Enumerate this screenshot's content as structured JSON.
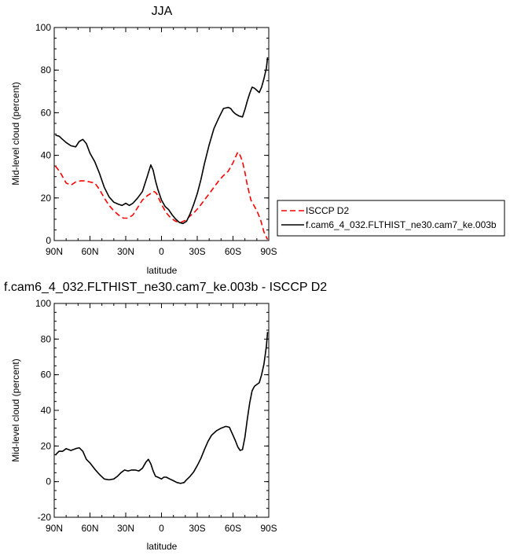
{
  "chart_data": [
    {
      "type": "line",
      "title": "JJA",
      "xlabel": "latitude",
      "ylabel": "Mid-level cloud (percent)",
      "xlim": [
        90,
        -90
      ],
      "ylim": [
        0,
        100
      ],
      "xticks": [
        90,
        60,
        30,
        0,
        -30,
        -60,
        -90
      ],
      "xtick_labels": [
        "90N",
        "60N",
        "30N",
        "0",
        "30S",
        "60S",
        "90S"
      ],
      "yticks": [
        0,
        20,
        40,
        60,
        80,
        100
      ],
      "ytick_labels": [
        "0",
        "20",
        "40",
        "60",
        "80",
        "100"
      ],
      "legend_position": "right",
      "series": [
        {
          "name": "ISCCP D2",
          "color": "#ff0000",
          "dash": "dashed",
          "x": [
            89,
            85,
            80,
            76,
            72,
            68,
            64,
            60,
            56,
            52,
            48,
            44,
            40,
            36,
            32,
            28,
            24,
            20,
            16,
            12,
            8,
            6,
            4,
            0,
            -4,
            -8,
            -12,
            -16,
            -20,
            -24,
            -28,
            -32,
            -36,
            -40,
            -44,
            -48,
            -52,
            -56,
            -60,
            -62,
            -64,
            -66,
            -68,
            -70,
            -72,
            -75,
            -78,
            -80,
            -83,
            -86,
            -89
          ],
          "y": [
            35,
            32,
            27,
            26,
            27.5,
            28,
            28,
            27.5,
            27,
            24,
            20,
            16.5,
            14,
            12,
            10.5,
            10.5,
            12,
            15.5,
            19,
            21,
            22.5,
            23,
            22,
            17,
            13,
            10.5,
            9,
            8.5,
            9.5,
            11.5,
            13.5,
            16,
            19,
            22,
            25,
            28,
            30.5,
            32.5,
            36.5,
            39,
            41.5,
            40,
            37,
            32,
            26,
            19,
            16,
            14,
            10,
            4,
            0.5
          ]
        },
        {
          "name": "f.cam6_4_032.FLTHIST_ne30.cam7_ke.003b",
          "color": "#000000",
          "dash": "solid",
          "x": [
            89,
            86,
            83,
            80,
            76,
            72,
            69,
            66,
            63,
            60,
            56,
            52,
            48,
            44,
            40,
            36,
            33,
            30,
            27,
            24,
            20,
            16,
            12,
            9,
            7,
            5,
            3,
            0,
            -3,
            -6,
            -9,
            -12,
            -15,
            -18,
            -21,
            -24,
            -27,
            -30,
            -33,
            -36,
            -40,
            -44,
            -48,
            -52,
            -56,
            -58,
            -60,
            -62,
            -65,
            -68,
            -70,
            -72,
            -74,
            -76,
            -78,
            -80,
            -82,
            -84,
            -86,
            -88,
            -89
          ],
          "y": [
            49.5,
            49,
            47.5,
            46,
            44.5,
            44,
            46.5,
            47.5,
            45.5,
            41,
            37,
            31.5,
            25,
            20.5,
            18,
            17,
            16.5,
            17.5,
            16.5,
            17.5,
            20,
            23,
            30,
            35.5,
            33,
            28,
            24,
            19,
            16,
            14.5,
            12,
            10,
            8.5,
            8,
            9,
            12.5,
            17,
            22,
            28.5,
            36,
            45,
            52.5,
            57.5,
            62,
            62.5,
            62,
            60.5,
            59.5,
            58.5,
            58,
            61.5,
            65.5,
            69,
            72,
            71.5,
            70.5,
            69.5,
            72,
            76,
            81,
            86
          ]
        }
      ]
    },
    {
      "type": "line",
      "title": "f.cam6_4_032.FLTHIST_ne30.cam7_ke.003b - ISCCP D2",
      "xlabel": "latitude",
      "ylabel": "Mid-level cloud (percent)",
      "xlim": [
        90,
        -90
      ],
      "ylim": [
        -20,
        100
      ],
      "xticks": [
        90,
        60,
        30,
        0,
        -30,
        -60,
        -90
      ],
      "xtick_labels": [
        "90N",
        "60N",
        "30N",
        "0",
        "30S",
        "60S",
        "90S"
      ],
      "yticks": [
        -20,
        0,
        20,
        40,
        60,
        80,
        100
      ],
      "ytick_labels": [
        "-20",
        "0",
        "20",
        "40",
        "60",
        "80",
        "100"
      ],
      "series": [
        {
          "color": "#000000",
          "dash": "solid",
          "x": [
            89,
            86,
            83,
            80,
            76,
            72,
            69,
            66,
            63,
            60,
            56,
            52,
            48,
            44,
            40,
            37,
            34,
            31,
            28,
            25,
            22,
            19,
            16,
            13,
            11,
            9,
            7,
            5,
            3,
            0,
            -2,
            -4,
            -7,
            -10,
            -13,
            -16,
            -19,
            -21,
            -24,
            -27,
            -30,
            -33,
            -36,
            -39,
            -42,
            -46,
            -50,
            -54,
            -57,
            -60,
            -62,
            -64,
            -66,
            -68,
            -70,
            -72,
            -74,
            -76,
            -78,
            -80,
            -82,
            -84,
            -86,
            -88,
            -89
          ],
          "y": [
            15,
            17,
            17,
            18.5,
            17.5,
            18.5,
            19,
            17,
            12.5,
            10.5,
            7,
            4,
            1.5,
            1,
            1.5,
            3,
            5,
            6.5,
            6,
            6.5,
            6.5,
            6,
            7.5,
            11,
            12.5,
            10,
            6,
            3,
            2.5,
            1.5,
            2.5,
            2.5,
            1.5,
            0.5,
            -0.5,
            -1,
            -0.5,
            1,
            3,
            5.5,
            9,
            13,
            18,
            22.5,
            26,
            28.5,
            30,
            31,
            30.5,
            26,
            23,
            19.5,
            17.5,
            18,
            25,
            35,
            44,
            51,
            53.5,
            54.5,
            55.5,
            60,
            66,
            76,
            84
          ]
        }
      ]
    }
  ]
}
